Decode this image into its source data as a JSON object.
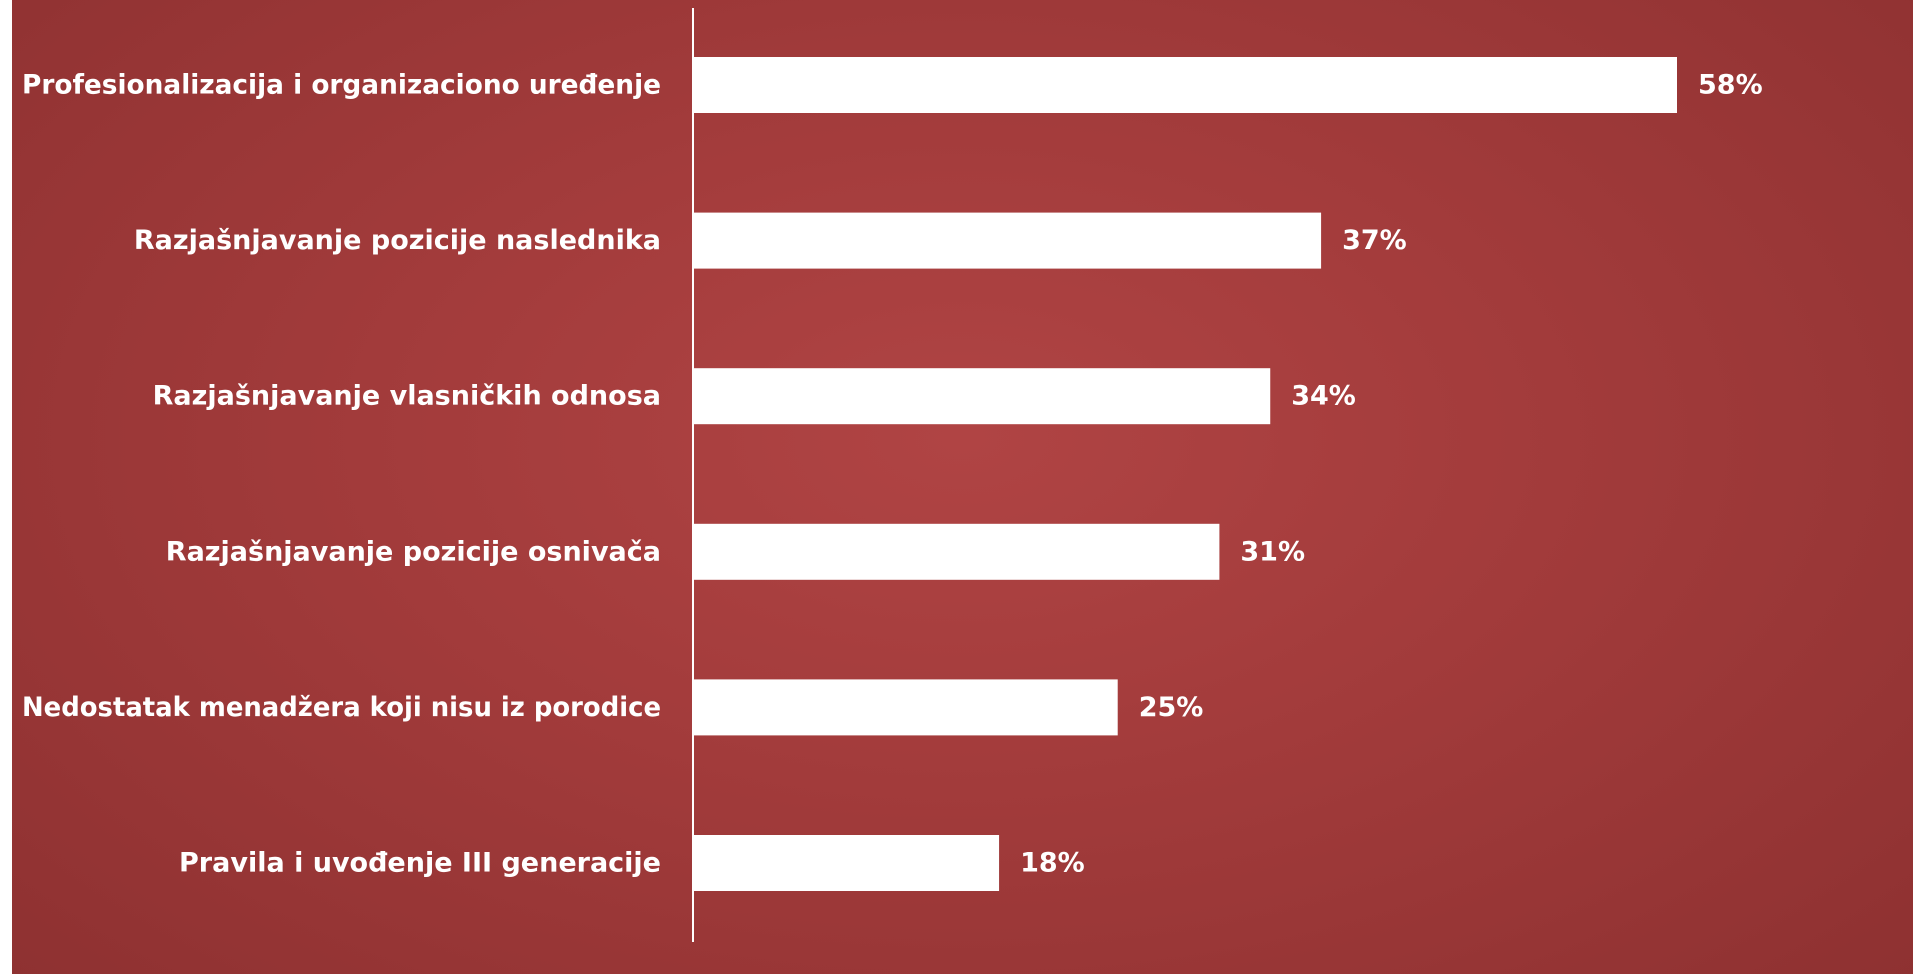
{
  "chart_data": {
    "type": "bar",
    "orientation": "horizontal",
    "categories": [
      "Profesionalizacija i organizaciono uređenje",
      "Razjašnjavanje pozicije naslednika",
      "Razjašnjavanje vlasničkih odnosa",
      "Razjašnjavanje pozicije osnivača",
      "Nedostatak menadžera koji nisu iz porodice",
      "Pravila i uvođenje III generacije"
    ],
    "values": [
      58,
      37,
      34,
      31,
      25,
      18
    ],
    "value_labels": [
      "58%",
      "37%",
      "34%",
      "31%",
      "25%",
      "18%"
    ],
    "unit": "%",
    "xlim": [
      0,
      100
    ],
    "grid": false,
    "legend": "none",
    "colors": {
      "bar": "#ffffff",
      "background": "#a23b3b",
      "axis": "#ffffff",
      "text": "#ffffff"
    }
  }
}
